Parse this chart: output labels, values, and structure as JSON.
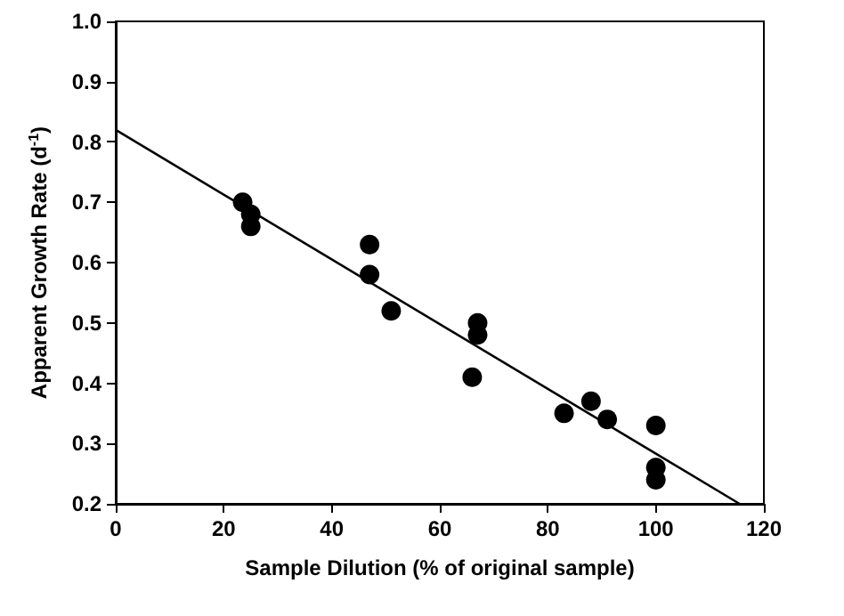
{
  "chart_data": {
    "type": "scatter",
    "xlabel": "Sample Dilution (% of original sample)",
    "ylabel": "Apparent Growth Rate (d$^{-1}$)",
    "xlim": [
      0,
      120
    ],
    "xticks": [
      0,
      20,
      40,
      60,
      80,
      100,
      120
    ],
    "ylim": [
      0.2,
      1.0
    ],
    "yticks": [
      0.2,
      0.3,
      0.4,
      0.5,
      0.6,
      0.7,
      0.8,
      0.9,
      {
        "value": 1.0,
        "label": "1.0"
      }
    ],
    "marker": "circle",
    "grid": false,
    "series": [
      {
        "color": "#000000",
        "x": [
          23.5,
          25,
          25,
          47,
          47,
          51,
          66,
          67,
          67,
          83,
          88,
          91,
          100,
          100,
          100
        ],
        "values": [
          0.7,
          0.68,
          0.66,
          0.63,
          0.58,
          0.52,
          0.41,
          0.5,
          0.48,
          0.35,
          0.37,
          0.34,
          0.33,
          0.26,
          0.24
        ]
      },
      {
        "type": "line",
        "marker": "none",
        "color": "#000000",
        "x": [
          0,
          115.5
        ],
        "values": [
          0.82,
          0.2
        ]
      }
    ]
  }
}
